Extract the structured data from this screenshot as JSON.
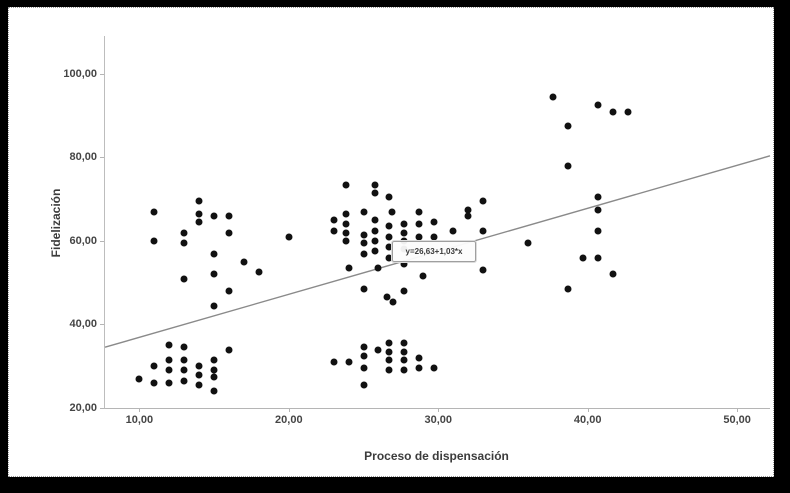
{
  "figure": {
    "frame_color": "#000000",
    "panel_background": "#ffffff",
    "point_color": "#111111",
    "line_color": "#8a8a8a",
    "text_color": "#3c3c3c"
  },
  "chart_data": {
    "type": "scatter",
    "title": "",
    "xlabel": "Proceso de dispensación",
    "ylabel": "Fidelización",
    "xlim": [
      7.7,
      52.2
    ],
    "ylim": [
      20,
      109.1
    ],
    "grid": false,
    "legend": "none",
    "x_ticks": [
      {
        "value": 10,
        "label": "10,00"
      },
      {
        "value": 20,
        "label": "20,00"
      },
      {
        "value": 30,
        "label": "30,00"
      },
      {
        "value": 40,
        "label": "40,00"
      },
      {
        "value": 50,
        "label": "50,00"
      }
    ],
    "y_ticks": [
      {
        "value": 20,
        "label": "20,00"
      },
      {
        "value": 40,
        "label": "40,00"
      },
      {
        "value": 60,
        "label": "60,00"
      },
      {
        "value": 80,
        "label": "80,00"
      },
      {
        "value": 100,
        "label": "100,00"
      }
    ],
    "fit_line": {
      "label": "y=26,63+1,03*x",
      "intercept": 26.63,
      "slope": 1.03
    },
    "points": [
      [
        11,
        67
      ],
      [
        11,
        60
      ],
      [
        13,
        62
      ],
      [
        13,
        59.5
      ],
      [
        13,
        51
      ],
      [
        14,
        69.5
      ],
      [
        14,
        66.5
      ],
      [
        14,
        64.5
      ],
      [
        15,
        66
      ],
      [
        15,
        57
      ],
      [
        15,
        52
      ],
      [
        15,
        44.5
      ],
      [
        16,
        66
      ],
      [
        16,
        62
      ],
      [
        16,
        48
      ],
      [
        17,
        55
      ],
      [
        18,
        52.5
      ],
      [
        10,
        27
      ],
      [
        11,
        30
      ],
      [
        11,
        26
      ],
      [
        12,
        35
      ],
      [
        12,
        31.5
      ],
      [
        12,
        29
      ],
      [
        12,
        26
      ],
      [
        13,
        34.5
      ],
      [
        13,
        31.5
      ],
      [
        13,
        29
      ],
      [
        13,
        26.5
      ],
      [
        14,
        30
      ],
      [
        14,
        28
      ],
      [
        14,
        25.5
      ],
      [
        15,
        31.5
      ],
      [
        15,
        29
      ],
      [
        15,
        27.5
      ],
      [
        15,
        24
      ],
      [
        16,
        34
      ],
      [
        20,
        61
      ],
      [
        23,
        65
      ],
      [
        23,
        62.5
      ],
      [
        23.8,
        73.5
      ],
      [
        23.8,
        66.5
      ],
      [
        23.8,
        64
      ],
      [
        23.8,
        62
      ],
      [
        23.8,
        60
      ],
      [
        25,
        67
      ],
      [
        25,
        61.5
      ],
      [
        25,
        59.5
      ],
      [
        25,
        57
      ],
      [
        25.8,
        73.5
      ],
      [
        25.8,
        71.5
      ],
      [
        25.8,
        65
      ],
      [
        25.8,
        62.5
      ],
      [
        25.8,
        60
      ],
      [
        25.8,
        57.5
      ],
      [
        26.7,
        70.5
      ],
      [
        26.7,
        63.5
      ],
      [
        26.7,
        61
      ],
      [
        26.7,
        58.5
      ],
      [
        26.7,
        56
      ],
      [
        26.9,
        67
      ],
      [
        27.7,
        64
      ],
      [
        27.7,
        62
      ],
      [
        27.7,
        60
      ],
      [
        27.7,
        58
      ],
      [
        28.7,
        67
      ],
      [
        28.7,
        64
      ],
      [
        28.7,
        61
      ],
      [
        29.7,
        64.5
      ],
      [
        29.7,
        61
      ],
      [
        31,
        62.5
      ],
      [
        32,
        67.5
      ],
      [
        32,
        66
      ],
      [
        33,
        69.5
      ],
      [
        33,
        62.5
      ],
      [
        36,
        59.5
      ],
      [
        24,
        53.5
      ],
      [
        26,
        53.5
      ],
      [
        27.7,
        54.5
      ],
      [
        29,
        51.5
      ],
      [
        25,
        48.5
      ],
      [
        27.7,
        48
      ],
      [
        26.6,
        46.5
      ],
      [
        27,
        45.5
      ],
      [
        33,
        53
      ],
      [
        23,
        31
      ],
      [
        24,
        31
      ],
      [
        25,
        34.5
      ],
      [
        25,
        32.5
      ],
      [
        25,
        29.5
      ],
      [
        25,
        25.5
      ],
      [
        26,
        34
      ],
      [
        26.7,
        35.5
      ],
      [
        26.7,
        33.5
      ],
      [
        26.7,
        31.5
      ],
      [
        26.7,
        29
      ],
      [
        27.7,
        35.5
      ],
      [
        27.7,
        33.5
      ],
      [
        27.7,
        31.5
      ],
      [
        27.7,
        29
      ],
      [
        28.7,
        32
      ],
      [
        28.7,
        29.5
      ],
      [
        29.7,
        29.5
      ],
      [
        37.7,
        94.5
      ],
      [
        40.7,
        92.5
      ],
      [
        41.7,
        91
      ],
      [
        42.7,
        91
      ],
      [
        38.7,
        87.5
      ],
      [
        38.7,
        78
      ],
      [
        40.7,
        70.5
      ],
      [
        40.7,
        67.5
      ],
      [
        40.7,
        62.5
      ],
      [
        39.7,
        56
      ],
      [
        40.7,
        56
      ],
      [
        41.7,
        52
      ],
      [
        38.7,
        48.5
      ]
    ]
  }
}
